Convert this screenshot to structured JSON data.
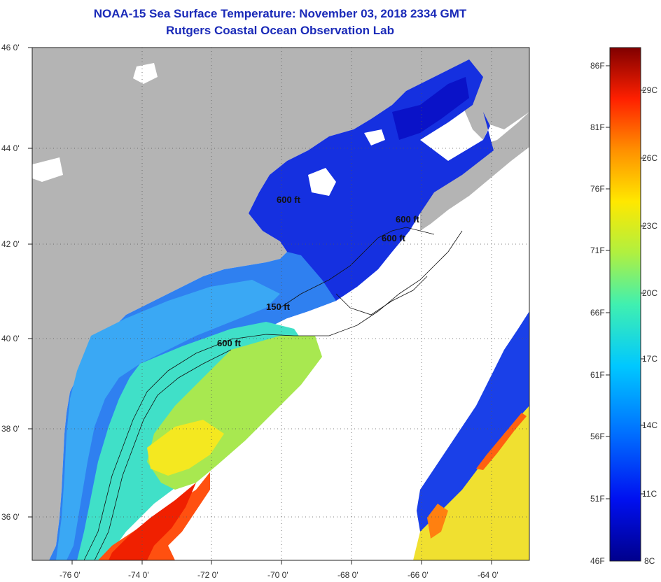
{
  "header": {
    "title": "NOAA-15 Sea Surface Temperature:  November 03, 2018 2334 GMT",
    "subtitle": "Rutgers Coastal Ocean Observation Lab"
  },
  "map": {
    "lat_labels": [
      "46 0'",
      "44 0'",
      "42 0'",
      "40 0'",
      "38 0'",
      "36 0'"
    ],
    "lon_labels": [
      "-76 0'",
      "-74 0'",
      "-72 0'",
      "-70 0'",
      "-68 0'",
      "-66 0'",
      "-64 0'"
    ],
    "contour_labels": [
      "600 ft",
      "600 ft",
      "600 ft",
      "150 ft",
      "600 ft"
    ],
    "land_color": "#b4b4b4",
    "cloud_color": "#ffffff"
  },
  "colorbar": {
    "f_labels": [
      "86F",
      "81F",
      "76F",
      "71F",
      "66F",
      "61F",
      "56F",
      "51F",
      "46F"
    ],
    "c_labels": [
      "29C",
      "26C",
      "23C",
      "20C",
      "17C",
      "14C",
      "11C",
      "8C"
    ]
  }
}
